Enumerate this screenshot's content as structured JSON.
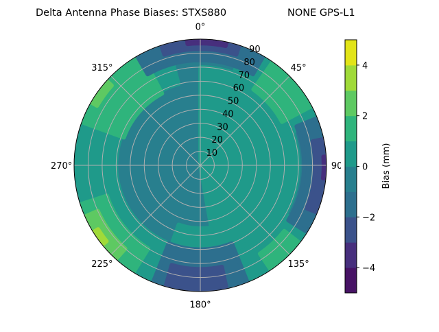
{
  "chart_data": {
    "type": "polar-contour",
    "title_left": "Delta Antenna Phase Biases: STXS880",
    "title_right": "NONE GPS-L1",
    "angular_ticks": [
      "0°",
      "45°",
      "90°",
      "135°",
      "180°",
      "225°",
      "270°",
      "315°"
    ],
    "angular_direction": "clockwise",
    "angular_zero": "top",
    "radial_ticks": [
      "10",
      "20",
      "30",
      "40",
      "50",
      "60",
      "70",
      "80",
      "90"
    ],
    "radial_range": [
      0,
      90
    ],
    "grid": true,
    "colorbar": {
      "label": "Bias (mm)",
      "range": [
        -5,
        5
      ],
      "ticks": [
        "−4",
        "−2",
        "0",
        "2",
        "4"
      ],
      "tick_values": [
        -4,
        -2,
        0,
        2,
        4
      ],
      "levels": [
        -5,
        -4,
        -3,
        -2,
        -1,
        0,
        1,
        2,
        3,
        4,
        5
      ],
      "colormap": "viridis",
      "level_colors": [
        "#471365",
        "#472f7d",
        "#3b528b",
        "#2d6f8e",
        "#287f8e",
        "#1f9a8a",
        "#2fb47c",
        "#5ec962",
        "#a0da39",
        "#e2e418"
      ]
    },
    "background_bias": -0.5,
    "regions": [
      {
        "az": [
          0,
          170
        ],
        "zen": [
          0,
          70
        ],
        "bias": 0.5
      },
      {
        "az": [
          170,
          200
        ],
        "zen": [
          45,
          75
        ],
        "bias": 0.5
      },
      {
        "az": [
          195,
          345
        ],
        "zen": [
          60,
          90
        ],
        "bias": 0.5
      },
      {
        "az": [
          120,
          165
        ],
        "zen": [
          65,
          90
        ],
        "bias": 0.5
      },
      {
        "az": [
          20,
          70
        ],
        "zen": [
          55,
          90
        ],
        "bias": 0.5
      },
      {
        "az": [
          35,
          62
        ],
        "zen": [
          66,
          90
        ],
        "bias": 1.5
      },
      {
        "az": [
          290,
          332
        ],
        "zen": [
          58,
          90
        ],
        "bias": 1.5
      },
      {
        "az": [
          212,
          252
        ],
        "zen": [
          70,
          90
        ],
        "bias": 1.5
      },
      {
        "az": [
          128,
          146
        ],
        "zen": [
          76,
          90
        ],
        "bias": 1.5
      },
      {
        "az": [
          222,
          246
        ],
        "zen": [
          80,
          90
        ],
        "bias": 2.5
      },
      {
        "az": [
          300,
          312
        ],
        "zen": [
          85,
          90
        ],
        "bias": 2.5
      },
      {
        "az": [
          231,
          238
        ],
        "zen": [
          86,
          90
        ],
        "bias": 3.5
      },
      {
        "az": [
          330,
          30
        ],
        "zen": [
          75,
          90
        ],
        "bias": -1.5
      },
      {
        "az": [
          68,
          122
        ],
        "zen": [
          74,
          90
        ],
        "bias": -1.5
      },
      {
        "az": [
          158,
          202
        ],
        "zen": [
          60,
          90
        ],
        "bias": -1.5
      },
      {
        "az": [
          342,
          18
        ],
        "zen": [
          83,
          90
        ],
        "bias": -2.5
      },
      {
        "az": [
          78,
          112
        ],
        "zen": [
          82,
          90
        ],
        "bias": -2.5
      },
      {
        "az": [
          168,
          196
        ],
        "zen": [
          74,
          90
        ],
        "bias": -2.5
      },
      {
        "az": [
          354,
          12
        ],
        "zen": [
          87,
          90
        ],
        "bias": -3.5
      },
      {
        "az": [
          86,
          96
        ],
        "zen": [
          88,
          90
        ],
        "bias": -3.5
      }
    ]
  }
}
